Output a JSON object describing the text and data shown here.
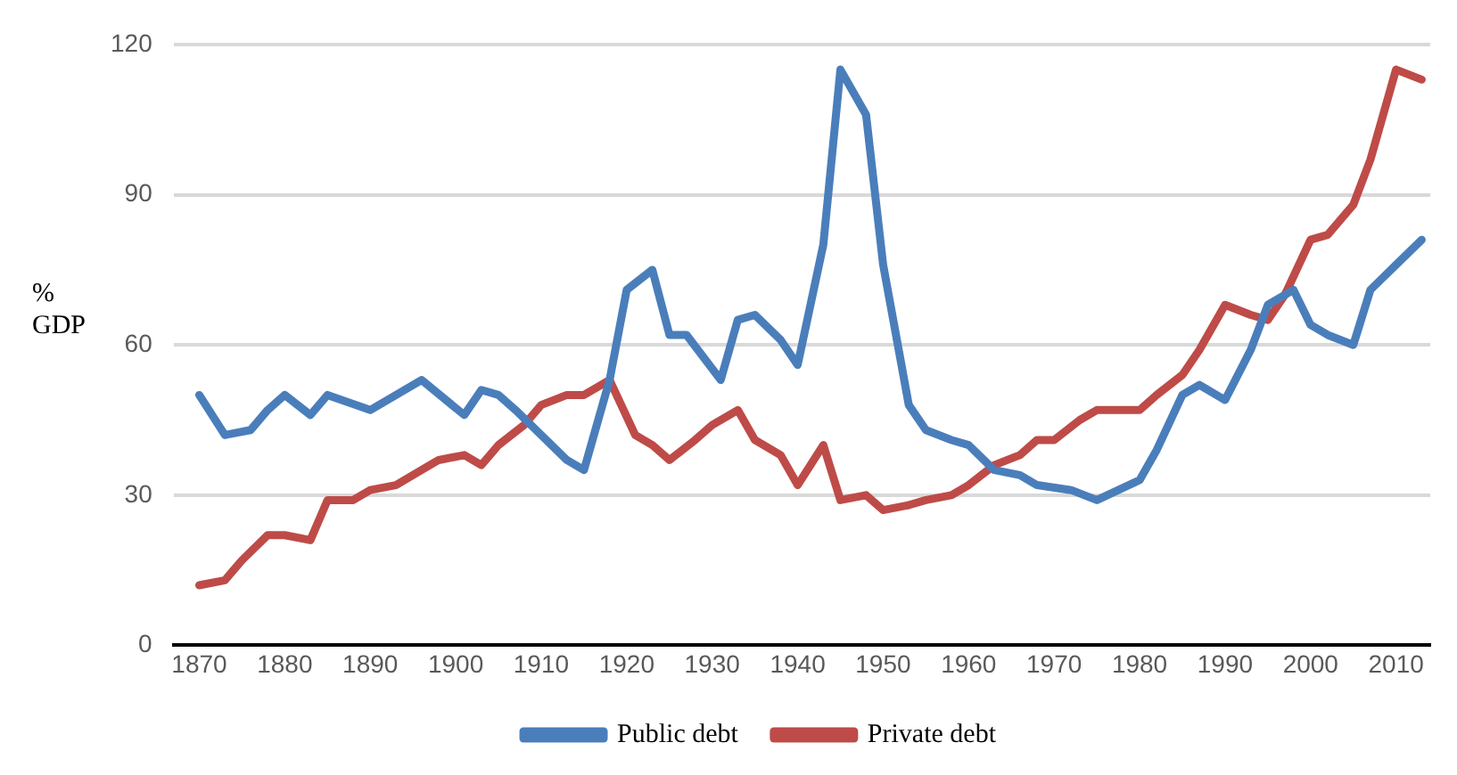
{
  "chart_data": {
    "type": "line",
    "ylabel": "% GDP",
    "xlim": [
      1867,
      2014
    ],
    "xticks": [
      1870,
      1880,
      1890,
      1900,
      1910,
      1920,
      1930,
      1940,
      1950,
      1960,
      1970,
      1980,
      1990,
      2000,
      2010
    ],
    "ylim": [
      0,
      120
    ],
    "yticks": [
      0,
      30,
      60,
      90,
      120
    ],
    "grid": "y",
    "legend": "bottom",
    "marker": "none",
    "line_style": "solid",
    "series": [
      {
        "name": "Public debt",
        "color": "#4a7ebb",
        "x": [
          1870,
          1873,
          1876,
          1878,
          1880,
          1883,
          1885,
          1890,
          1896,
          1901,
          1903,
          1905,
          1907,
          1913,
          1915,
          1918,
          1920,
          1923,
          1925,
          1927,
          1931,
          1933,
          1935,
          1938,
          1940,
          1943,
          1945,
          1948,
          1950,
          1953,
          1955,
          1958,
          1960,
          1963,
          1966,
          1968,
          1972,
          1975,
          1980,
          1982,
          1985,
          1987,
          1990,
          1993,
          1995,
          1998,
          2000,
          2002,
          2005,
          2007,
          2010,
          2013
        ],
        "values": [
          50,
          42,
          43,
          47,
          50,
          46,
          50,
          47,
          53,
          46,
          51,
          50,
          47,
          37,
          35,
          53,
          71,
          75,
          62,
          62,
          53,
          65,
          66,
          61,
          56,
          80,
          115,
          106,
          76,
          48,
          43,
          41,
          40,
          35,
          34,
          32,
          31,
          29,
          33,
          39,
          50,
          52,
          49,
          59,
          68,
          71,
          64,
          62,
          60,
          71,
          76,
          81
        ]
      },
      {
        "name": "Private debt",
        "color": "#be4b48",
        "x": [
          1870,
          1873,
          1875,
          1878,
          1880,
          1883,
          1885,
          1888,
          1890,
          1893,
          1896,
          1898,
          1901,
          1903,
          1905,
          1908,
          1910,
          1913,
          1915,
          1918,
          1921,
          1923,
          1925,
          1928,
          1930,
          1933,
          1935,
          1938,
          1940,
          1943,
          1945,
          1948,
          1950,
          1953,
          1955,
          1958,
          1960,
          1963,
          1966,
          1968,
          1970,
          1973,
          1975,
          1978,
          1980,
          1982,
          1985,
          1987,
          1990,
          1993,
          1995,
          1997,
          2000,
          2002,
          2005,
          2007,
          2010,
          2013
        ],
        "values": [
          12,
          13,
          17,
          22,
          22,
          21,
          29,
          29,
          31,
          32,
          35,
          37,
          38,
          36,
          40,
          44,
          48,
          50,
          50,
          53,
          42,
          40,
          37,
          41,
          44,
          47,
          41,
          38,
          32,
          40,
          29,
          30,
          27,
          28,
          29,
          30,
          32,
          36,
          38,
          41,
          41,
          45,
          47,
          47,
          47,
          50,
          54,
          59,
          68,
          66,
          65,
          70,
          81,
          82,
          88,
          97,
          115,
          113
        ]
      }
    ]
  }
}
